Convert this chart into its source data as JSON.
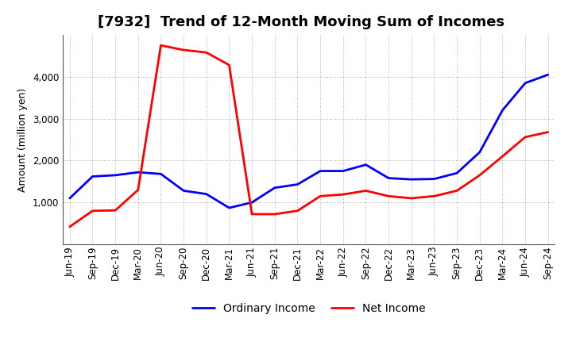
{
  "title": "[7932]  Trend of 12-Month Moving Sum of Incomes",
  "ylabel": "Amount (million yen)",
  "x_labels": [
    "Jun-19",
    "Sep-19",
    "Dec-19",
    "Mar-20",
    "Jun-20",
    "Sep-20",
    "Dec-20",
    "Mar-21",
    "Jun-21",
    "Sep-21",
    "Dec-21",
    "Mar-22",
    "Jun-22",
    "Sep-22",
    "Dec-22",
    "Mar-23",
    "Jun-23",
    "Sep-23",
    "Dec-23",
    "Mar-24",
    "Jun-24",
    "Sep-24"
  ],
  "ordinary_income": [
    1100,
    1620,
    1650,
    1720,
    1680,
    1280,
    1200,
    870,
    1000,
    1350,
    1430,
    1750,
    1750,
    1900,
    1580,
    1550,
    1560,
    1700,
    2200,
    3200,
    3850,
    4050
  ],
  "net_income": [
    420,
    800,
    810,
    1300,
    4750,
    4640,
    4580,
    4280,
    720,
    720,
    800,
    1150,
    1190,
    1280,
    1150,
    1100,
    1150,
    1280,
    1650,
    2100,
    2560,
    2680
  ],
  "ordinary_color": "#0000ff",
  "net_color": "#ff0000",
  "line_width": 2.0,
  "ylim_min": 0,
  "ylim_max": 5000,
  "yticks": [
    1000,
    2000,
    3000,
    4000
  ],
  "grid_color": "#999999",
  "background_color": "#ffffff",
  "title_fontsize": 13,
  "axis_label_fontsize": 9,
  "tick_fontsize": 8.5,
  "legend_labels": [
    "Ordinary Income",
    "Net Income"
  ],
  "legend_fontsize": 10
}
